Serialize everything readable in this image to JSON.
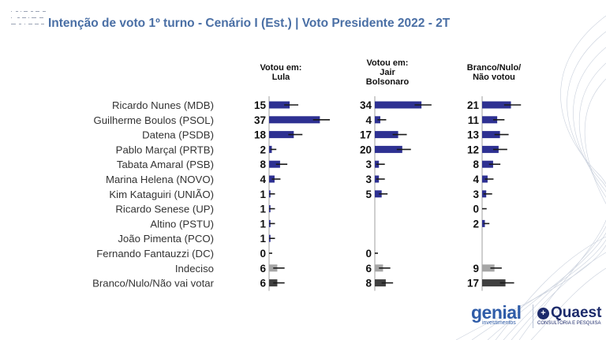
{
  "header": {
    "title": "Intenção de voto 1º turno - Cenário I (Est.) | Voto Presidente 2022 - 2T"
  },
  "brands": {
    "genial": "genial",
    "genial_sub": "investimentos",
    "quaest": "Quaest",
    "quaest_sub": "CONSULTORIA E PESQUISA"
  },
  "colors": {
    "title": "#4a6fa5",
    "candidate_bar": "#2e3192",
    "undecided_bar": "#a6a6a6",
    "blank_bar": "#404040",
    "error_bar": "#1a1a1a",
    "axis": "#bfbfbf"
  },
  "chart_data": {
    "type": "bar",
    "orientation": "horizontal",
    "unit": "%",
    "categories": [
      "Ricardo Nunes (MDB)",
      "Guilherme Boulos (PSOL)",
      "Datena (PSDB)",
      "Pablo Marçal (PRTB)",
      "Tabata Amaral (PSB)",
      "Marina Helena (NOVO)",
      "Kim Kataguiri (UNIÃO)",
      "Ricardo Senese (UP)",
      "Altino (PSTU)",
      "João Pimenta (PCO)",
      "Fernando Fantauzzi (DC)",
      "Indeciso",
      "Branco/Nulo/Não vai votar"
    ],
    "series": [
      {
        "name": "Votou em:\nLula",
        "values": [
          15,
          37,
          18,
          2,
          8,
          4,
          1,
          1,
          1,
          1,
          0,
          6,
          6
        ]
      },
      {
        "name": "Votou em:\nJair\nBolsonaro",
        "values": [
          34,
          4,
          17,
          20,
          3,
          3,
          5,
          null,
          null,
          null,
          0,
          6,
          8
        ]
      },
      {
        "name": "Branco/Nulo/\nNão votou",
        "values": [
          21,
          11,
          13,
          12,
          8,
          4,
          3,
          0,
          2,
          null,
          null,
          9,
          17
        ]
      }
    ],
    "error_margin": [
      [
        4,
        5,
        4,
        1,
        3,
        2,
        1,
        1,
        1,
        1,
        0,
        3,
        3
      ],
      [
        5,
        2,
        4,
        4,
        2,
        2,
        2,
        0,
        0,
        0,
        0,
        3,
        3
      ],
      [
        5,
        3,
        4,
        4,
        3,
        2,
        2,
        1,
        1,
        0,
        0,
        3,
        4
      ]
    ],
    "xlim": [
      0,
      40
    ]
  }
}
